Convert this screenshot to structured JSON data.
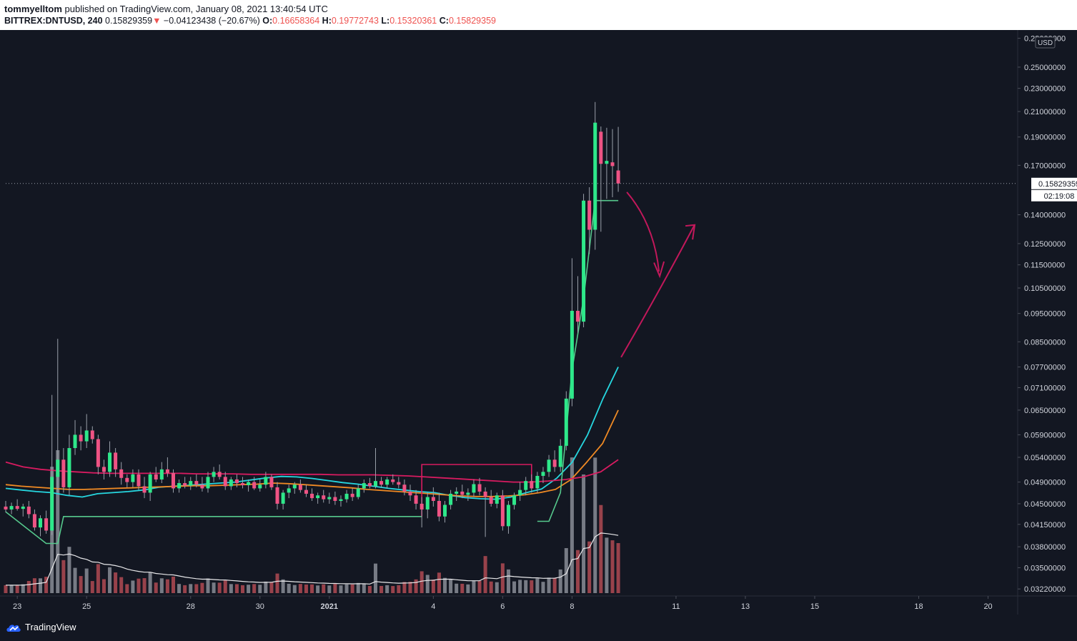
{
  "header": {
    "author": "tommyelltom",
    "published_text": "published on TradingView.com, January 08, 2021 13:40:54 UTC",
    "symbol": "BITTREX:DNTUSD, 240",
    "last_price": "0.15829359",
    "change_arrow": "▼",
    "change": "−0.04123438 (−20.67%)",
    "open_label": "O:",
    "open": "0.16658364",
    "high_label": "H:",
    "high": "0.19772743",
    "low_label": "L:",
    "low": "0.15320361",
    "close_label": "C:",
    "close": "0.15829359"
  },
  "price_scale": {
    "currency": "USD",
    "price_tag": "0.15829359",
    "countdown": "02:19:08",
    "labels": [
      "0.28000000",
      "0.25000000",
      "0.23000000",
      "0.21000000",
      "0.19000000",
      "0.17000000",
      "0.14000000",
      "0.12500000",
      "0.11500000",
      "0.10500000",
      "0.09500000",
      "0.08500000",
      "0.07700000",
      "0.07100000",
      "0.06500000",
      "0.05900000",
      "0.05400000",
      "0.04900000",
      "0.04500000",
      "0.04150000",
      "0.03800000",
      "0.03500000",
      "0.03220000"
    ]
  },
  "time_axis": {
    "labels": [
      "23",
      "25",
      "28",
      "30",
      "2021",
      "4",
      "6",
      "8",
      "11",
      "13",
      "15",
      "18",
      "20"
    ]
  },
  "footer": {
    "brand": "TradingView"
  },
  "colors": {
    "background": "#131722",
    "up": "#26a69a",
    "up_bright": "#2ee88a",
    "down": "#ef5384",
    "ma_cyan": "#26d7e0",
    "ma_orange": "#f08a24",
    "ma_red": "#d81b60",
    "trail_green": "#56c98d",
    "drawn_arrow": "#c2185b"
  },
  "chart_data": {
    "type": "candlestick",
    "ticker": "BITTREX:DNTUSD",
    "timeframe": "240",
    "y_scale": "log",
    "ylim": [
      0.0315,
      0.286
    ],
    "x_date_range": [
      "2020-12-22T16:00",
      "2021-01-20T20:00"
    ],
    "candles": [
      {
        "t": "2020-12-22T16:00",
        "o": 0.0445,
        "h": 0.0455,
        "l": 0.0435,
        "c": 0.044
      },
      {
        "t": "2020-12-22T20:00",
        "o": 0.044,
        "h": 0.0452,
        "l": 0.0432,
        "c": 0.0446
      },
      {
        "t": "2020-12-23T00:00",
        "o": 0.0446,
        "h": 0.0458,
        "l": 0.0438,
        "c": 0.0441
      },
      {
        "t": "2020-12-23T04:00",
        "o": 0.0441,
        "h": 0.045,
        "l": 0.0428,
        "c": 0.0445
      },
      {
        "t": "2020-12-23T08:00",
        "o": 0.0445,
        "h": 0.0455,
        "l": 0.0425,
        "c": 0.0432
      },
      {
        "t": "2020-12-23T12:00",
        "o": 0.0432,
        "h": 0.044,
        "l": 0.0405,
        "c": 0.041
      },
      {
        "t": "2020-12-23T16:00",
        "o": 0.041,
        "h": 0.043,
        "l": 0.0396,
        "c": 0.0425
      },
      {
        "t": "2020-12-23T20:00",
        "o": 0.0425,
        "h": 0.0438,
        "l": 0.04,
        "c": 0.0405
      },
      {
        "t": "2020-12-24T00:00",
        "o": 0.0405,
        "h": 0.069,
        "l": 0.0398,
        "c": 0.05
      },
      {
        "t": "2020-12-24T04:00",
        "o": 0.05,
        "h": 0.086,
        "l": 0.047,
        "c": 0.0535
      },
      {
        "t": "2020-12-24T08:00",
        "o": 0.0535,
        "h": 0.056,
        "l": 0.047,
        "c": 0.048
      },
      {
        "t": "2020-12-24T12:00",
        "o": 0.048,
        "h": 0.059,
        "l": 0.0465,
        "c": 0.056
      },
      {
        "t": "2020-12-24T16:00",
        "o": 0.056,
        "h": 0.0625,
        "l": 0.0545,
        "c": 0.059
      },
      {
        "t": "2020-12-24T20:00",
        "o": 0.059,
        "h": 0.061,
        "l": 0.0555,
        "c": 0.0575
      },
      {
        "t": "2020-12-25T00:00",
        "o": 0.0575,
        "h": 0.064,
        "l": 0.056,
        "c": 0.06
      },
      {
        "t": "2020-12-25T04:00",
        "o": 0.06,
        "h": 0.061,
        "l": 0.057,
        "c": 0.058
      },
      {
        "t": "2020-12-25T08:00",
        "o": 0.058,
        "h": 0.059,
        "l": 0.0505,
        "c": 0.052
      },
      {
        "t": "2020-12-25T12:00",
        "o": 0.052,
        "h": 0.0535,
        "l": 0.0495,
        "c": 0.051
      },
      {
        "t": "2020-12-25T16:00",
        "o": 0.051,
        "h": 0.0575,
        "l": 0.05,
        "c": 0.055
      },
      {
        "t": "2020-12-25T20:00",
        "o": 0.055,
        "h": 0.056,
        "l": 0.05,
        "c": 0.0515
      },
      {
        "t": "2020-12-26T00:00",
        "o": 0.0515,
        "h": 0.053,
        "l": 0.0485,
        "c": 0.0498
      },
      {
        "t": "2020-12-26T04:00",
        "o": 0.0498,
        "h": 0.0505,
        "l": 0.048,
        "c": 0.049
      },
      {
        "t": "2020-12-26T08:00",
        "o": 0.049,
        "h": 0.0515,
        "l": 0.048,
        "c": 0.0505
      },
      {
        "t": "2020-12-26T12:00",
        "o": 0.0505,
        "h": 0.0515,
        "l": 0.0475,
        "c": 0.0482
      },
      {
        "t": "2020-12-26T16:00",
        "o": 0.0482,
        "h": 0.05,
        "l": 0.046,
        "c": 0.047
      },
      {
        "t": "2020-12-26T20:00",
        "o": 0.047,
        "h": 0.051,
        "l": 0.0455,
        "c": 0.0505
      },
      {
        "t": "2020-12-27T00:00",
        "o": 0.0505,
        "h": 0.052,
        "l": 0.049,
        "c": 0.0495
      },
      {
        "t": "2020-12-27T04:00",
        "o": 0.0495,
        "h": 0.053,
        "l": 0.0488,
        "c": 0.0515
      },
      {
        "t": "2020-12-27T08:00",
        "o": 0.0515,
        "h": 0.054,
        "l": 0.05,
        "c": 0.0508
      },
      {
        "t": "2020-12-27T12:00",
        "o": 0.0508,
        "h": 0.0515,
        "l": 0.047,
        "c": 0.0478
      },
      {
        "t": "2020-12-27T16:00",
        "o": 0.0478,
        "h": 0.0495,
        "l": 0.047,
        "c": 0.0488
      },
      {
        "t": "2020-12-27T20:00",
        "o": 0.0488,
        "h": 0.05,
        "l": 0.0478,
        "c": 0.0483
      },
      {
        "t": "2020-12-28T00:00",
        "o": 0.0483,
        "h": 0.05,
        "l": 0.0475,
        "c": 0.0492
      },
      {
        "t": "2020-12-28T04:00",
        "o": 0.0492,
        "h": 0.0505,
        "l": 0.048,
        "c": 0.0485
      },
      {
        "t": "2020-12-28T08:00",
        "o": 0.0485,
        "h": 0.05,
        "l": 0.0472,
        "c": 0.0478
      },
      {
        "t": "2020-12-28T12:00",
        "o": 0.0478,
        "h": 0.051,
        "l": 0.047,
        "c": 0.05
      },
      {
        "t": "2020-12-28T16:00",
        "o": 0.05,
        "h": 0.052,
        "l": 0.049,
        "c": 0.051
      },
      {
        "t": "2020-12-28T20:00",
        "o": 0.051,
        "h": 0.0525,
        "l": 0.0495,
        "c": 0.05
      },
      {
        "t": "2020-12-29T00:00",
        "o": 0.05,
        "h": 0.051,
        "l": 0.0475,
        "c": 0.0482
      },
      {
        "t": "2020-12-29T04:00",
        "o": 0.0482,
        "h": 0.05,
        "l": 0.0475,
        "c": 0.0495
      },
      {
        "t": "2020-12-29T08:00",
        "o": 0.0495,
        "h": 0.0505,
        "l": 0.048,
        "c": 0.0488
      },
      {
        "t": "2020-12-29T12:00",
        "o": 0.0488,
        "h": 0.05,
        "l": 0.0478,
        "c": 0.0484
      },
      {
        "t": "2020-12-29T16:00",
        "o": 0.0484,
        "h": 0.0495,
        "l": 0.0472,
        "c": 0.049
      },
      {
        "t": "2020-12-29T20:00",
        "o": 0.049,
        "h": 0.05,
        "l": 0.0475,
        "c": 0.0478
      },
      {
        "t": "2020-12-30T00:00",
        "o": 0.0478,
        "h": 0.0495,
        "l": 0.0472,
        "c": 0.0485
      },
      {
        "t": "2020-12-30T04:00",
        "o": 0.0485,
        "h": 0.051,
        "l": 0.0478,
        "c": 0.05
      },
      {
        "t": "2020-12-30T08:00",
        "o": 0.05,
        "h": 0.0505,
        "l": 0.0475,
        "c": 0.048
      },
      {
        "t": "2020-12-30T12:00",
        "o": 0.048,
        "h": 0.049,
        "l": 0.044,
        "c": 0.045
      },
      {
        "t": "2020-12-30T16:00",
        "o": 0.045,
        "h": 0.0475,
        "l": 0.044,
        "c": 0.047
      },
      {
        "t": "2020-12-30T20:00",
        "o": 0.047,
        "h": 0.0485,
        "l": 0.046,
        "c": 0.0478
      },
      {
        "t": "2020-12-31T00:00",
        "o": 0.0478,
        "h": 0.049,
        "l": 0.0468,
        "c": 0.0485
      },
      {
        "t": "2020-12-31T04:00",
        "o": 0.0485,
        "h": 0.0495,
        "l": 0.047,
        "c": 0.0475
      },
      {
        "t": "2020-12-31T08:00",
        "o": 0.0475,
        "h": 0.0485,
        "l": 0.0462,
        "c": 0.0468
      },
      {
        "t": "2020-12-31T12:00",
        "o": 0.0468,
        "h": 0.0478,
        "l": 0.0455,
        "c": 0.046
      },
      {
        "t": "2020-12-31T16:00",
        "o": 0.046,
        "h": 0.047,
        "l": 0.045,
        "c": 0.0465
      },
      {
        "t": "2020-12-31T20:00",
        "o": 0.0465,
        "h": 0.0475,
        "l": 0.0452,
        "c": 0.0458
      },
      {
        "t": "2021-01-01T00:00",
        "o": 0.0458,
        "h": 0.047,
        "l": 0.045,
        "c": 0.0462
      },
      {
        "t": "2021-01-01T04:00",
        "o": 0.0462,
        "h": 0.0472,
        "l": 0.0448,
        "c": 0.0455
      },
      {
        "t": "2021-01-01T08:00",
        "o": 0.0455,
        "h": 0.0465,
        "l": 0.0445,
        "c": 0.0458
      },
      {
        "t": "2021-01-01T12:00",
        "o": 0.0458,
        "h": 0.0475,
        "l": 0.0452,
        "c": 0.0468
      },
      {
        "t": "2021-01-01T16:00",
        "o": 0.0468,
        "h": 0.0478,
        "l": 0.0455,
        "c": 0.0462
      },
      {
        "t": "2021-01-01T20:00",
        "o": 0.0462,
        "h": 0.0485,
        "l": 0.0458,
        "c": 0.0478
      },
      {
        "t": "2021-01-02T00:00",
        "o": 0.0478,
        "h": 0.0495,
        "l": 0.047,
        "c": 0.0488
      },
      {
        "t": "2021-01-02T04:00",
        "o": 0.0488,
        "h": 0.0498,
        "l": 0.0478,
        "c": 0.0482
      },
      {
        "t": "2021-01-02T08:00",
        "o": 0.0482,
        "h": 0.056,
        "l": 0.0478,
        "c": 0.0492
      },
      {
        "t": "2021-01-02T12:00",
        "o": 0.0492,
        "h": 0.05,
        "l": 0.048,
        "c": 0.0485
      },
      {
        "t": "2021-01-02T16:00",
        "o": 0.0485,
        "h": 0.05,
        "l": 0.0478,
        "c": 0.0495
      },
      {
        "t": "2021-01-02T20:00",
        "o": 0.0495,
        "h": 0.0505,
        "l": 0.0485,
        "c": 0.049
      },
      {
        "t": "2021-01-03T00:00",
        "o": 0.049,
        "h": 0.05,
        "l": 0.0478,
        "c": 0.0485
      },
      {
        "t": "2021-01-03T04:00",
        "o": 0.0485,
        "h": 0.0495,
        "l": 0.0465,
        "c": 0.0472
      },
      {
        "t": "2021-01-03T08:00",
        "o": 0.0472,
        "h": 0.0485,
        "l": 0.0455,
        "c": 0.0465
      },
      {
        "t": "2021-01-03T12:00",
        "o": 0.0465,
        "h": 0.0475,
        "l": 0.044,
        "c": 0.045
      },
      {
        "t": "2021-01-03T16:00",
        "o": 0.045,
        "h": 0.0462,
        "l": 0.041,
        "c": 0.044
      },
      {
        "t": "2021-01-03T20:00",
        "o": 0.044,
        "h": 0.047,
        "l": 0.0425,
        "c": 0.0462
      },
      {
        "t": "2021-01-04T00:00",
        "o": 0.0462,
        "h": 0.048,
        "l": 0.0445,
        "c": 0.0455
      },
      {
        "t": "2021-01-04T04:00",
        "o": 0.0455,
        "h": 0.047,
        "l": 0.042,
        "c": 0.0428
      },
      {
        "t": "2021-01-04T08:00",
        "o": 0.0428,
        "h": 0.0455,
        "l": 0.0418,
        "c": 0.0448
      },
      {
        "t": "2021-01-04T12:00",
        "o": 0.0448,
        "h": 0.0475,
        "l": 0.044,
        "c": 0.0468
      },
      {
        "t": "2021-01-04T16:00",
        "o": 0.0468,
        "h": 0.048,
        "l": 0.0455,
        "c": 0.0472
      },
      {
        "t": "2021-01-04T20:00",
        "o": 0.0472,
        "h": 0.0485,
        "l": 0.046,
        "c": 0.0466
      },
      {
        "t": "2021-01-05T00:00",
        "o": 0.0466,
        "h": 0.0478,
        "l": 0.0455,
        "c": 0.047
      },
      {
        "t": "2021-01-05T04:00",
        "o": 0.047,
        "h": 0.0495,
        "l": 0.0462,
        "c": 0.0486
      },
      {
        "t": "2021-01-05T08:00",
        "o": 0.0486,
        "h": 0.0498,
        "l": 0.0465,
        "c": 0.0472
      },
      {
        "t": "2021-01-05T12:00",
        "o": 0.0472,
        "h": 0.048,
        "l": 0.0395,
        "c": 0.0462
      },
      {
        "t": "2021-01-05T16:00",
        "o": 0.0462,
        "h": 0.0475,
        "l": 0.0445,
        "c": 0.045
      },
      {
        "t": "2021-01-05T20:00",
        "o": 0.045,
        "h": 0.047,
        "l": 0.0442,
        "c": 0.0465
      },
      {
        "t": "2021-01-06T00:00",
        "o": 0.0465,
        "h": 0.0475,
        "l": 0.0405,
        "c": 0.0412
      },
      {
        "t": "2021-01-06T04:00",
        "o": 0.0412,
        "h": 0.0455,
        "l": 0.04,
        "c": 0.0448
      },
      {
        "t": "2021-01-06T08:00",
        "o": 0.0448,
        "h": 0.047,
        "l": 0.044,
        "c": 0.0465
      },
      {
        "t": "2021-01-06T12:00",
        "o": 0.0465,
        "h": 0.049,
        "l": 0.0455,
        "c": 0.0475
      },
      {
        "t": "2021-01-06T16:00",
        "o": 0.0475,
        "h": 0.05,
        "l": 0.0465,
        "c": 0.0492
      },
      {
        "t": "2021-01-06T20:00",
        "o": 0.0492,
        "h": 0.0505,
        "l": 0.047,
        "c": 0.0478
      },
      {
        "t": "2021-01-07T00:00",
        "o": 0.0478,
        "h": 0.051,
        "l": 0.047,
        "c": 0.0502
      },
      {
        "t": "2021-01-07T04:00",
        "o": 0.0502,
        "h": 0.052,
        "l": 0.0488,
        "c": 0.051
      },
      {
        "t": "2021-01-07T08:00",
        "o": 0.051,
        "h": 0.0545,
        "l": 0.05,
        "c": 0.0535
      },
      {
        "t": "2021-01-07T12:00",
        "o": 0.0535,
        "h": 0.0555,
        "l": 0.051,
        "c": 0.052
      },
      {
        "t": "2021-01-07T16:00",
        "o": 0.052,
        "h": 0.058,
        "l": 0.051,
        "c": 0.0565
      },
      {
        "t": "2021-01-07T20:00",
        "o": 0.0565,
        "h": 0.07,
        "l": 0.0555,
        "c": 0.068
      },
      {
        "t": "2021-01-08T00:00",
        "o": 0.068,
        "h": 0.118,
        "l": 0.066,
        "c": 0.096
      },
      {
        "t": "2021-01-08T04:00",
        "o": 0.096,
        "h": 0.11,
        "l": 0.088,
        "c": 0.092
      },
      {
        "t": "2021-01-08T08:00",
        "o": 0.092,
        "h": 0.152,
        "l": 0.09,
        "c": 0.148
      },
      {
        "t": "2021-01-08T12:00",
        "o": 0.148,
        "h": 0.156,
        "l": 0.12,
        "c": 0.132
      },
      {
        "t": "2021-01-08T16:00",
        "o": 0.132,
        "h": 0.218,
        "l": 0.122,
        "c": 0.201
      },
      {
        "t": "2021-01-08T20:00",
        "o": 0.194,
        "h": 0.198,
        "l": 0.131,
        "c": 0.171
      },
      {
        "t": "2021-01-09T00:00",
        "o": 0.171,
        "h": 0.197,
        "l": 0.149,
        "c": 0.173
      },
      {
        "t": "2021-01-09T04:00",
        "o": 0.172,
        "h": 0.196,
        "l": 0.15,
        "c": 0.1695
      },
      {
        "t": "2021-01-09T08:00",
        "o": 0.1666,
        "h": 0.1977,
        "l": 0.1532,
        "c": 0.1583
      }
    ],
    "volume_note": "volume histogram at bottom with white volume moving-average line",
    "moving_averages": [
      {
        "color": "#26d7e0",
        "values": [
          0.0478,
          0.0475,
          0.0472,
          0.047,
          0.0465,
          0.0462,
          0.0468,
          0.047,
          0.0472,
          0.0475,
          0.048,
          0.0482,
          0.0484,
          0.0486,
          0.0488,
          0.049,
          0.0494,
          0.0498,
          0.0501,
          0.05,
          0.0497,
          0.0493,
          0.0489,
          0.0486,
          0.0482,
          0.0478,
          0.0475,
          0.0472,
          0.047,
          0.0465,
          0.0461,
          0.0459,
          0.0458,
          0.0462,
          0.047,
          0.0477,
          0.0498,
          0.053,
          0.059,
          0.068,
          0.077
        ]
      },
      {
        "color": "#f08a24",
        "values": [
          0.0485,
          0.0482,
          0.048,
          0.0478,
          0.0476,
          0.0476,
          0.0477,
          0.0478,
          0.0479,
          0.048,
          0.0481,
          0.0482,
          0.0483,
          0.0483,
          0.0484,
          0.0485,
          0.0486,
          0.0488,
          0.0487,
          0.0485,
          0.0483,
          0.0481,
          0.0479,
          0.0476,
          0.0474,
          0.0472,
          0.047,
          0.0468,
          0.0466,
          0.0464,
          0.0463,
          0.0463,
          0.0464,
          0.0466,
          0.047,
          0.0476,
          0.0495,
          0.053,
          0.057,
          0.065
        ]
      },
      {
        "color": "#d81b60",
        "values": [
          0.053,
          0.052,
          0.0515,
          0.0512,
          0.051,
          0.0508,
          0.0507,
          0.0507,
          0.0507,
          0.0507,
          0.0507,
          0.0506,
          0.0506,
          0.0506,
          0.0505,
          0.0505,
          0.0505,
          0.0505,
          0.0505,
          0.0504,
          0.0504,
          0.0504,
          0.0503,
          0.0502,
          0.05,
          0.0498,
          0.0496,
          0.0494,
          0.0492,
          0.049,
          0.049,
          0.0492,
          0.0495,
          0.05,
          0.051,
          0.0535
        ]
      }
    ]
  }
}
